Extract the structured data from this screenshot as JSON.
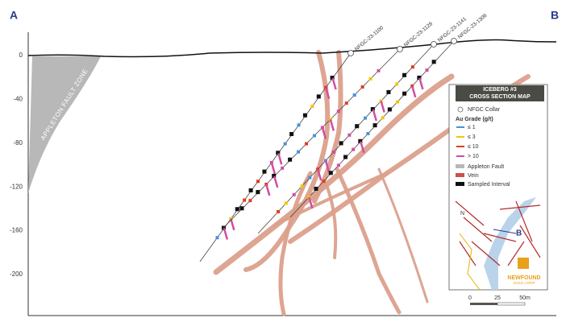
{
  "section": {
    "start_label": "A",
    "end_label": "B",
    "fault_label": "APPLETON FAULT ZONE"
  },
  "depth_axis": {
    "ticks": [
      0,
      -40,
      -80,
      -120,
      -160,
      -200
    ]
  },
  "drill_holes": [
    "NFGC-23-1100",
    "NFGC-23-1128",
    "NFGC-23-1141",
    "NFGC-23-1306"
  ],
  "legend": {
    "title": [
      "ICEBERG #3",
      "CROSS SECTION MAP"
    ],
    "collar": "NFGC Collar",
    "grade_title": "Au Grade (g/t)",
    "grades": [
      "≤ 1",
      "≤ 3",
      "≤ 10",
      "> 10"
    ],
    "items": [
      "Appleton Fault",
      "Vein",
      "Sampled Interval"
    ],
    "inset": {
      "north": "N",
      "point": "B"
    },
    "logo": [
      "NEWFOUND",
      "GOLD CORP"
    ],
    "scale": [
      "0",
      "25",
      "50m"
    ]
  }
}
